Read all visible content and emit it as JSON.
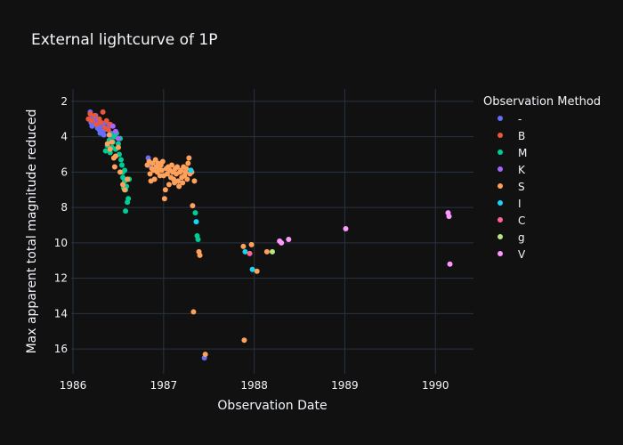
{
  "chart_data": {
    "type": "scatter",
    "title": "External lightcurve of 1P",
    "xlabel": "Observation Date",
    "ylabel": "Max apparent total magnitude reduced",
    "x_ticks": [
      "1986",
      "1987",
      "1988",
      "1989",
      "1990"
    ],
    "y_ticks": [
      "2",
      "4",
      "6",
      "8",
      "10",
      "12",
      "14",
      "16"
    ],
    "xlim": [
      1985.98,
      1990.42
    ],
    "ylim": [
      17.4,
      1.3
    ],
    "y_reversed": true,
    "grid": true,
    "legend": {
      "title": "Observation Method",
      "position": "right"
    },
    "series": [
      {
        "name": "-",
        "color": "#636efa",
        "points": [
          [
            1986.18,
            3.0
          ],
          [
            1986.19,
            2.6
          ],
          [
            1986.2,
            3.2
          ],
          [
            1986.21,
            3.4
          ],
          [
            1986.22,
            2.9
          ],
          [
            1986.23,
            3.3
          ],
          [
            1986.24,
            3.1
          ],
          [
            1986.25,
            2.8
          ],
          [
            1986.26,
            3.0
          ],
          [
            1986.27,
            3.5
          ],
          [
            1986.28,
            3.2
          ],
          [
            1986.29,
            3.6
          ],
          [
            1986.3,
            3.8
          ],
          [
            1986.31,
            3.4
          ],
          [
            1986.32,
            3.7
          ],
          [
            1986.33,
            3.3
          ],
          [
            1986.34,
            3.9
          ],
          [
            1986.35,
            3.6
          ],
          [
            1986.36,
            3.2
          ],
          [
            1986.38,
            3.5
          ],
          [
            1986.4,
            3.4
          ],
          [
            1986.42,
            3.8
          ],
          [
            1986.44,
            4.0
          ],
          [
            1986.83,
            5.2
          ],
          [
            1986.84,
            5.6
          ],
          [
            1987.45,
            16.5
          ]
        ]
      },
      {
        "name": "B",
        "color": "#EF553B",
        "points": [
          [
            1986.17,
            3.0
          ],
          [
            1986.19,
            2.7
          ],
          [
            1986.21,
            3.1
          ],
          [
            1986.24,
            2.8
          ],
          [
            1986.26,
            3.3
          ],
          [
            1986.29,
            3.0
          ],
          [
            1986.31,
            3.2
          ],
          [
            1986.33,
            2.6
          ],
          [
            1986.35,
            3.5
          ],
          [
            1986.37,
            3.1
          ],
          [
            1986.39,
            3.6
          ],
          [
            1986.41,
            3.3
          ]
        ]
      },
      {
        "name": "M",
        "color": "#00cc96",
        "points": [
          [
            1986.36,
            4.8
          ],
          [
            1986.38,
            4.5
          ],
          [
            1986.4,
            4.2
          ],
          [
            1986.41,
            4.9
          ],
          [
            1986.42,
            3.9
          ],
          [
            1986.43,
            4.6
          ],
          [
            1986.44,
            4.3
          ],
          [
            1986.46,
            4.0
          ],
          [
            1986.47,
            4.7
          ],
          [
            1986.48,
            3.8
          ],
          [
            1986.5,
            4.4
          ],
          [
            1986.51,
            5.0
          ],
          [
            1986.52,
            4.1
          ],
          [
            1986.53,
            5.3
          ],
          [
            1986.54,
            5.6
          ],
          [
            1986.55,
            6.0
          ],
          [
            1986.56,
            6.9
          ],
          [
            1986.57,
            6.5
          ],
          [
            1986.58,
            7.0
          ],
          [
            1986.59,
            6.8
          ],
          [
            1986.6,
            7.7
          ],
          [
            1986.61,
            7.5
          ],
          [
            1986.58,
            8.2
          ],
          [
            1986.62,
            6.4
          ],
          [
            1986.57,
            5.9
          ],
          [
            1986.55,
            6.3
          ],
          [
            1987.35,
            8.3
          ],
          [
            1987.37,
            9.6
          ],
          [
            1987.38,
            9.8
          ]
        ]
      },
      {
        "name": "K",
        "color": "#ab63fa",
        "points": [
          [
            1986.44,
            3.4
          ],
          [
            1986.47,
            3.7
          ],
          [
            1986.5,
            4.1
          ]
        ]
      },
      {
        "name": "S",
        "color": "#FFA15A",
        "points": [
          [
            1986.38,
            4.4
          ],
          [
            1986.4,
            3.9
          ],
          [
            1986.41,
            4.7
          ],
          [
            1986.43,
            4.3
          ],
          [
            1986.45,
            5.2
          ],
          [
            1986.46,
            5.7
          ],
          [
            1986.47,
            5.1
          ],
          [
            1986.5,
            4.6
          ],
          [
            1986.52,
            6.0
          ],
          [
            1986.55,
            6.7
          ],
          [
            1986.57,
            7.0
          ],
          [
            1986.6,
            6.4
          ],
          [
            1986.82,
            5.6
          ],
          [
            1986.84,
            5.4
          ],
          [
            1986.85,
            6.1
          ],
          [
            1986.86,
            6.5
          ],
          [
            1986.87,
            5.8
          ],
          [
            1986.88,
            5.5
          ],
          [
            1986.89,
            5.9
          ],
          [
            1986.9,
            6.4
          ],
          [
            1986.91,
            5.3
          ],
          [
            1986.92,
            5.7
          ],
          [
            1986.93,
            6.0
          ],
          [
            1986.94,
            5.5
          ],
          [
            1986.95,
            5.8
          ],
          [
            1986.96,
            6.2
          ],
          [
            1986.97,
            5.6
          ],
          [
            1986.98,
            5.9
          ],
          [
            1986.99,
            5.4
          ],
          [
            1987.0,
            6.2
          ],
          [
            1987.01,
            7.5
          ],
          [
            1987.02,
            7.0
          ],
          [
            1987.03,
            5.8
          ],
          [
            1987.04,
            6.1
          ],
          [
            1987.05,
            5.7
          ],
          [
            1987.06,
            6.7
          ],
          [
            1987.07,
            5.9
          ],
          [
            1987.08,
            6.3
          ],
          [
            1987.09,
            5.6
          ],
          [
            1987.1,
            6.0
          ],
          [
            1987.11,
            6.4
          ],
          [
            1987.12,
            6.6
          ],
          [
            1987.13,
            5.8
          ],
          [
            1987.14,
            6.1
          ],
          [
            1987.15,
            5.7
          ],
          [
            1987.16,
            6.5
          ],
          [
            1987.17,
            6.8
          ],
          [
            1987.18,
            6.0
          ],
          [
            1987.19,
            5.9
          ],
          [
            1987.2,
            6.3
          ],
          [
            1987.21,
            6.6
          ],
          [
            1987.22,
            5.7
          ],
          [
            1987.23,
            6.2
          ],
          [
            1987.24,
            6.0
          ],
          [
            1987.25,
            5.8
          ],
          [
            1987.26,
            6.4
          ],
          [
            1987.27,
            5.5
          ],
          [
            1987.28,
            5.2
          ],
          [
            1987.29,
            6.1
          ],
          [
            1987.3,
            5.9
          ],
          [
            1987.31,
            6.0
          ],
          [
            1987.32,
            7.9
          ],
          [
            1987.33,
            13.9
          ],
          [
            1987.34,
            6.5
          ],
          [
            1987.39,
            10.5
          ],
          [
            1987.4,
            10.7
          ],
          [
            1987.46,
            16.3
          ],
          [
            1987.88,
            10.2
          ],
          [
            1987.89,
            15.5
          ],
          [
            1987.97,
            10.1
          ],
          [
            1988.03,
            11.6
          ],
          [
            1988.14,
            10.5
          ]
        ]
      },
      {
        "name": "I",
        "color": "#19d3f3",
        "points": [
          [
            1987.3,
            5.9
          ],
          [
            1987.36,
            8.8
          ],
          [
            1987.9,
            10.5
          ],
          [
            1987.98,
            11.5
          ]
        ]
      },
      {
        "name": "C",
        "color": "#FF6692",
        "points": [
          [
            1987.95,
            10.6
          ]
        ]
      },
      {
        "name": "g",
        "color": "#B6E880",
        "points": [
          [
            1988.2,
            10.5
          ]
        ]
      },
      {
        "name": "V",
        "color": "#FF97FF",
        "points": [
          [
            1988.28,
            9.9
          ],
          [
            1988.3,
            10.0
          ],
          [
            1988.38,
            9.8
          ],
          [
            1989.01,
            9.2
          ],
          [
            1990.14,
            8.3
          ],
          [
            1990.15,
            8.5
          ],
          [
            1990.16,
            11.2
          ]
        ]
      }
    ]
  }
}
